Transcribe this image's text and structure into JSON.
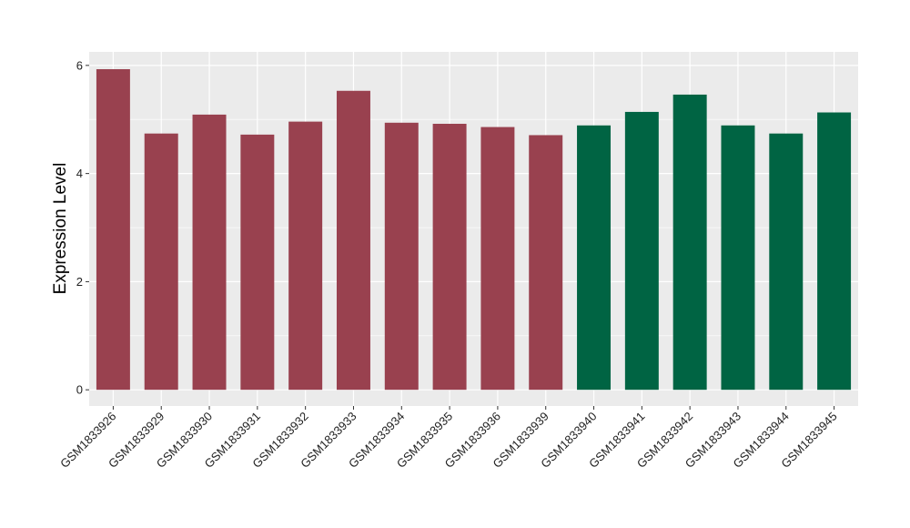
{
  "chart_data": {
    "type": "bar",
    "title": "",
    "xlabel": "",
    "ylabel": "Expression Level",
    "ylim": [
      -0.3,
      6.25
    ],
    "yticks": [
      0,
      2,
      4,
      6
    ],
    "grid": true,
    "legend": "none",
    "categories": [
      "GSM1833926",
      "GSM1833929",
      "GSM1833930",
      "GSM1833931",
      "GSM1833932",
      "GSM1833933",
      "GSM1833934",
      "GSM1833935",
      "GSM1833936",
      "GSM1833939",
      "GSM1833940",
      "GSM1833941",
      "GSM1833942",
      "GSM1833943",
      "GSM1833944",
      "GSM1833945"
    ],
    "values": [
      5.93,
      4.74,
      5.09,
      4.72,
      4.96,
      5.53,
      4.94,
      4.92,
      4.86,
      4.71,
      4.89,
      5.14,
      5.46,
      4.89,
      4.74,
      5.13
    ],
    "groups": [
      0,
      0,
      0,
      0,
      0,
      0,
      0,
      0,
      0,
      0,
      1,
      1,
      1,
      1,
      1,
      1
    ],
    "colors": {
      "group_0": "#99414f",
      "group_1": "#006443",
      "panel_background": "#ebebeb",
      "grid": "#ffffff"
    }
  }
}
